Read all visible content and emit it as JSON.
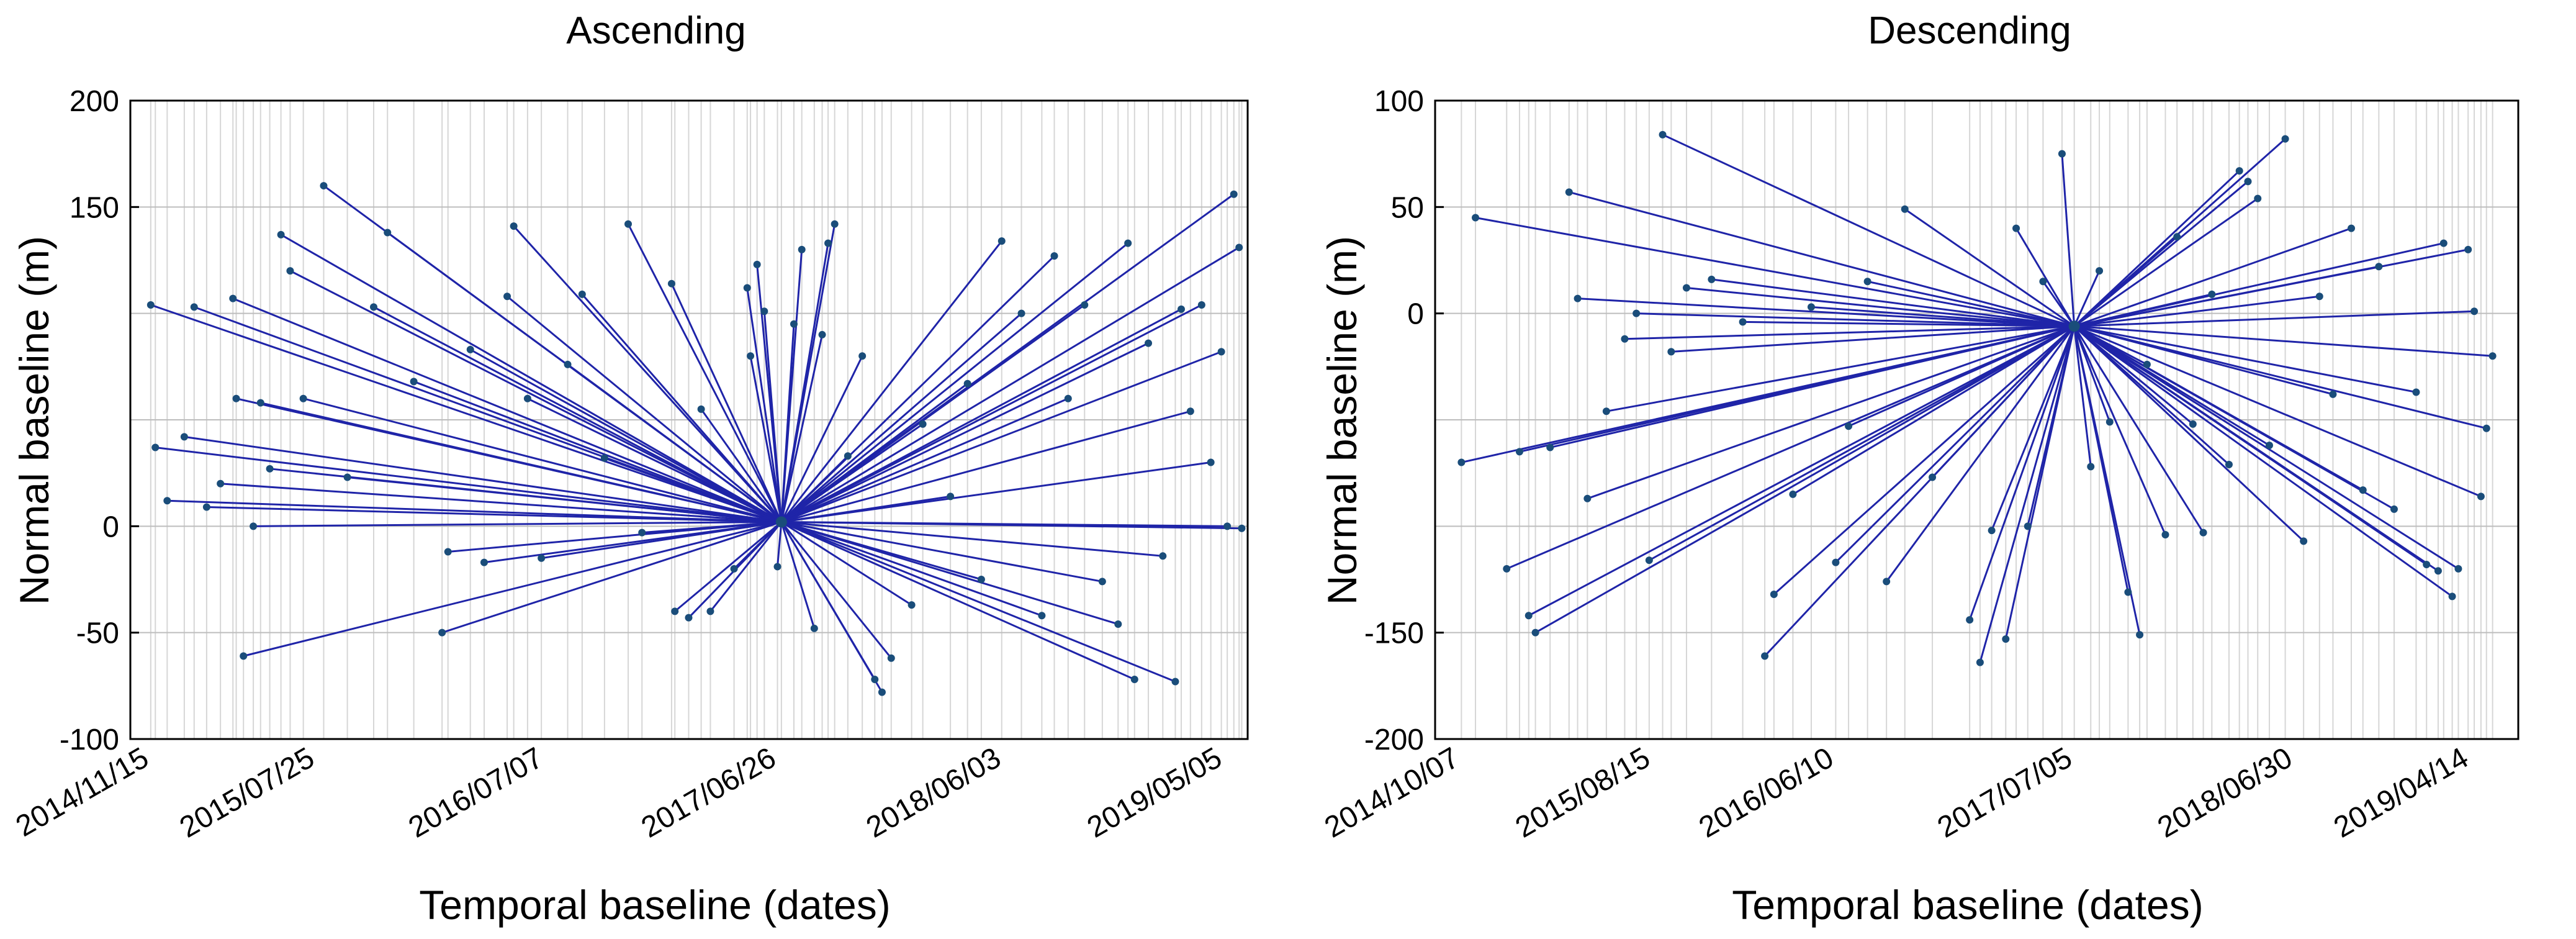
{
  "chart_data": [
    {
      "type": "line",
      "title": "Ascending",
      "xlabel": "Temporal baseline (dates)",
      "ylabel": "Normal baseline (m)",
      "xlim": [
        "2014-10-15",
        "2019-06-10"
      ],
      "ylim": [
        -100,
        200
      ],
      "x_ticks": [
        "2014/11/15",
        "2015/07/25",
        "2016/07/07",
        "2017/06/26",
        "2018/06/03",
        "2019/05/05"
      ],
      "y_ticks": [
        "-100",
        "-50",
        "0",
        "150",
        "200"
      ],
      "grid": true,
      "master": {
        "date": "2017-07-01",
        "baseline": 2
      },
      "connections": [
        {
          "date": "2014-11-15",
          "baseline": 104
        },
        {
          "date": "2014-11-22",
          "baseline": 37
        },
        {
          "date": "2014-12-10",
          "baseline": 12
        },
        {
          "date": "2015-01-05",
          "baseline": 42
        },
        {
          "date": "2015-01-20",
          "baseline": 103
        },
        {
          "date": "2015-02-08",
          "baseline": 9
        },
        {
          "date": "2015-03-01",
          "baseline": 20
        },
        {
          "date": "2015-03-20",
          "baseline": 107
        },
        {
          "date": "2015-03-25",
          "baseline": 60
        },
        {
          "date": "2015-04-05",
          "baseline": -61
        },
        {
          "date": "2015-04-20",
          "baseline": 0
        },
        {
          "date": "2015-05-01",
          "baseline": 58
        },
        {
          "date": "2015-05-15",
          "baseline": 27
        },
        {
          "date": "2015-06-01",
          "baseline": 137
        },
        {
          "date": "2015-06-15",
          "baseline": 120
        },
        {
          "date": "2015-07-05",
          "baseline": 60
        },
        {
          "date": "2015-08-05",
          "baseline": 160
        },
        {
          "date": "2015-09-10",
          "baseline": 23
        },
        {
          "date": "2015-10-20",
          "baseline": 103
        },
        {
          "date": "2015-11-10",
          "baseline": 138
        },
        {
          "date": "2015-12-20",
          "baseline": 68
        },
        {
          "date": "2016-02-01",
          "baseline": -50
        },
        {
          "date": "2016-02-10",
          "baseline": -12
        },
        {
          "date": "2016-03-15",
          "baseline": 83
        },
        {
          "date": "2016-04-05",
          "baseline": -17
        },
        {
          "date": "2016-05-10",
          "baseline": 108
        },
        {
          "date": "2016-05-20",
          "baseline": 141
        },
        {
          "date": "2016-06-10",
          "baseline": 60
        },
        {
          "date": "2016-07-01",
          "baseline": -15
        },
        {
          "date": "2016-08-10",
          "baseline": 76
        },
        {
          "date": "2016-09-01",
          "baseline": 109
        },
        {
          "date": "2016-10-05",
          "baseline": 32
        },
        {
          "date": "2016-11-10",
          "baseline": 142
        },
        {
          "date": "2016-12-01",
          "baseline": -3
        },
        {
          "date": "2017-01-15",
          "baseline": 114
        },
        {
          "date": "2017-01-20",
          "baseline": -40
        },
        {
          "date": "2017-02-10",
          "baseline": -43
        },
        {
          "date": "2017-03-01",
          "baseline": 55
        },
        {
          "date": "2017-03-15",
          "baseline": -40
        },
        {
          "date": "2017-04-20",
          "baseline": -20
        },
        {
          "date": "2017-05-10",
          "baseline": 112
        },
        {
          "date": "2017-05-15",
          "baseline": 80
        },
        {
          "date": "2017-05-25",
          "baseline": 123
        },
        {
          "date": "2017-06-05",
          "baseline": 101
        },
        {
          "date": "2017-06-25",
          "baseline": -19
        },
        {
          "date": "2017-07-20",
          "baseline": 95
        },
        {
          "date": "2017-08-01",
          "baseline": 130
        },
        {
          "date": "2017-08-20",
          "baseline": -48
        },
        {
          "date": "2017-09-01",
          "baseline": 90
        },
        {
          "date": "2017-09-10",
          "baseline": 133
        },
        {
          "date": "2017-09-20",
          "baseline": 142
        },
        {
          "date": "2017-10-10",
          "baseline": 33
        },
        {
          "date": "2017-11-01",
          "baseline": 80
        },
        {
          "date": "2017-11-20",
          "baseline": -72
        },
        {
          "date": "2017-12-01",
          "baseline": -78
        },
        {
          "date": "2017-12-15",
          "baseline": -62
        },
        {
          "date": "2018-01-15",
          "baseline": -37
        },
        {
          "date": "2018-02-01",
          "baseline": 48
        },
        {
          "date": "2018-03-15",
          "baseline": 14
        },
        {
          "date": "2018-04-10",
          "baseline": 67
        },
        {
          "date": "2018-05-01",
          "baseline": -25
        },
        {
          "date": "2018-06-01",
          "baseline": 134
        },
        {
          "date": "2018-07-01",
          "baseline": 100
        },
        {
          "date": "2018-08-01",
          "baseline": -42
        },
        {
          "date": "2018-08-20",
          "baseline": 127
        },
        {
          "date": "2018-09-10",
          "baseline": 60
        },
        {
          "date": "2018-10-05",
          "baseline": 104
        },
        {
          "date": "2018-11-01",
          "baseline": -26
        },
        {
          "date": "2018-11-25",
          "baseline": -46
        },
        {
          "date": "2018-12-10",
          "baseline": 133
        },
        {
          "date": "2018-12-20",
          "baseline": -72
        },
        {
          "date": "2019-01-10",
          "baseline": 86
        },
        {
          "date": "2019-02-01",
          "baseline": -14
        },
        {
          "date": "2019-02-20",
          "baseline": -73
        },
        {
          "date": "2019-03-01",
          "baseline": 102
        },
        {
          "date": "2019-03-15",
          "baseline": 54
        },
        {
          "date": "2019-04-01",
          "baseline": 104
        },
        {
          "date": "2019-04-15",
          "baseline": 30
        },
        {
          "date": "2019-05-01",
          "baseline": 82
        },
        {
          "date": "2019-05-10",
          "baseline": 0
        },
        {
          "date": "2019-05-20",
          "baseline": 156
        },
        {
          "date": "2019-05-28",
          "baseline": 131
        },
        {
          "date": "2019-06-01",
          "baseline": -1
        }
      ]
    },
    {
      "type": "line",
      "title": "Descending",
      "xlabel": "Temporal baseline (dates)",
      "ylabel": "Normal baseline (m)",
      "xlim": [
        "2014-08-25",
        "2019-07-01"
      ],
      "ylim": [
        -200,
        100
      ],
      "x_ticks": [
        "2014/10/07",
        "2015/08/15",
        "2016/06/10",
        "2017/07/05",
        "2018/06/30",
        "2019/04/14"
      ],
      "y_ticks": [
        "-200",
        "-150",
        "0",
        "50",
        "100"
      ],
      "grid": true,
      "master": {
        "date": "2017-07-05",
        "baseline": -6
      },
      "connections": [
        {
          "date": "2014-10-07",
          "baseline": -70
        },
        {
          "date": "2014-10-30",
          "baseline": 45
        },
        {
          "date": "2014-12-20",
          "baseline": -120
        },
        {
          "date": "2015-01-10",
          "baseline": -65
        },
        {
          "date": "2015-01-25",
          "baseline": -142
        },
        {
          "date": "2015-02-05",
          "baseline": -150
        },
        {
          "date": "2015-03-01",
          "baseline": -63
        },
        {
          "date": "2015-04-01",
          "baseline": 57
        },
        {
          "date": "2015-04-15",
          "baseline": 7
        },
        {
          "date": "2015-05-01",
          "baseline": -87
        },
        {
          "date": "2015-06-01",
          "baseline": -46
        },
        {
          "date": "2015-07-01",
          "baseline": -12
        },
        {
          "date": "2015-07-20",
          "baseline": 0
        },
        {
          "date": "2015-08-10",
          "baseline": -116
        },
        {
          "date": "2015-09-01",
          "baseline": 84
        },
        {
          "date": "2015-09-15",
          "baseline": -18
        },
        {
          "date": "2015-10-10",
          "baseline": 12
        },
        {
          "date": "2015-11-20",
          "baseline": 16
        },
        {
          "date": "2016-01-10",
          "baseline": -4
        },
        {
          "date": "2016-02-15",
          "baseline": -161
        },
        {
          "date": "2016-03-01",
          "baseline": -132
        },
        {
          "date": "2016-04-01",
          "baseline": -85
        },
        {
          "date": "2016-05-01",
          "baseline": 3
        },
        {
          "date": "2016-06-10",
          "baseline": -117
        },
        {
          "date": "2016-07-01",
          "baseline": -53
        },
        {
          "date": "2016-08-01",
          "baseline": 15
        },
        {
          "date": "2016-09-01",
          "baseline": -126
        },
        {
          "date": "2016-10-01",
          "baseline": 49
        },
        {
          "date": "2016-11-15",
          "baseline": -77
        },
        {
          "date": "2017-01-15",
          "baseline": -144
        },
        {
          "date": "2017-02-01",
          "baseline": -164
        },
        {
          "date": "2017-02-20",
          "baseline": -102
        },
        {
          "date": "2017-03-15",
          "baseline": -153
        },
        {
          "date": "2017-04-01",
          "baseline": 40
        },
        {
          "date": "2017-04-20",
          "baseline": -100
        },
        {
          "date": "2017-05-15",
          "baseline": 15
        },
        {
          "date": "2017-06-15",
          "baseline": 75
        },
        {
          "date": "2017-08-01",
          "baseline": -72
        },
        {
          "date": "2017-08-15",
          "baseline": 20
        },
        {
          "date": "2017-09-01",
          "baseline": -51
        },
        {
          "date": "2017-10-01",
          "baseline": -131
        },
        {
          "date": "2017-10-20",
          "baseline": -151
        },
        {
          "date": "2017-11-01",
          "baseline": -24
        },
        {
          "date": "2017-12-01",
          "baseline": -104
        },
        {
          "date": "2017-12-20",
          "baseline": 36
        },
        {
          "date": "2018-01-15",
          "baseline": -52
        },
        {
          "date": "2018-02-01",
          "baseline": -103
        },
        {
          "date": "2018-02-15",
          "baseline": 9
        },
        {
          "date": "2018-03-15",
          "baseline": -71
        },
        {
          "date": "2018-04-01",
          "baseline": 67
        },
        {
          "date": "2018-04-15",
          "baseline": 62
        },
        {
          "date": "2018-05-01",
          "baseline": 54
        },
        {
          "date": "2018-05-20",
          "baseline": -62
        },
        {
          "date": "2018-06-15",
          "baseline": 82
        },
        {
          "date": "2018-07-15",
          "baseline": -107
        },
        {
          "date": "2018-08-10",
          "baseline": 8
        },
        {
          "date": "2018-09-01",
          "baseline": -38
        },
        {
          "date": "2018-10-01",
          "baseline": 40
        },
        {
          "date": "2018-10-20",
          "baseline": -83
        },
        {
          "date": "2018-11-15",
          "baseline": 22
        },
        {
          "date": "2018-12-10",
          "baseline": -92
        },
        {
          "date": "2019-01-15",
          "baseline": -37
        },
        {
          "date": "2019-02-01",
          "baseline": -118
        },
        {
          "date": "2019-02-20",
          "baseline": -121
        },
        {
          "date": "2019-03-01",
          "baseline": 33
        },
        {
          "date": "2019-03-15",
          "baseline": -133
        },
        {
          "date": "2019-03-25",
          "baseline": -120
        },
        {
          "date": "2019-04-10",
          "baseline": 30
        },
        {
          "date": "2019-04-20",
          "baseline": 1
        },
        {
          "date": "2019-05-01",
          "baseline": -86
        },
        {
          "date": "2019-05-10",
          "baseline": -54
        },
        {
          "date": "2019-05-20",
          "baseline": -20
        }
      ]
    }
  ],
  "colors": {
    "line": "#1f24a8",
    "marker": "#1a4d7a",
    "grid": "#bdbdbd",
    "acquisition": "#d6d6d6"
  }
}
